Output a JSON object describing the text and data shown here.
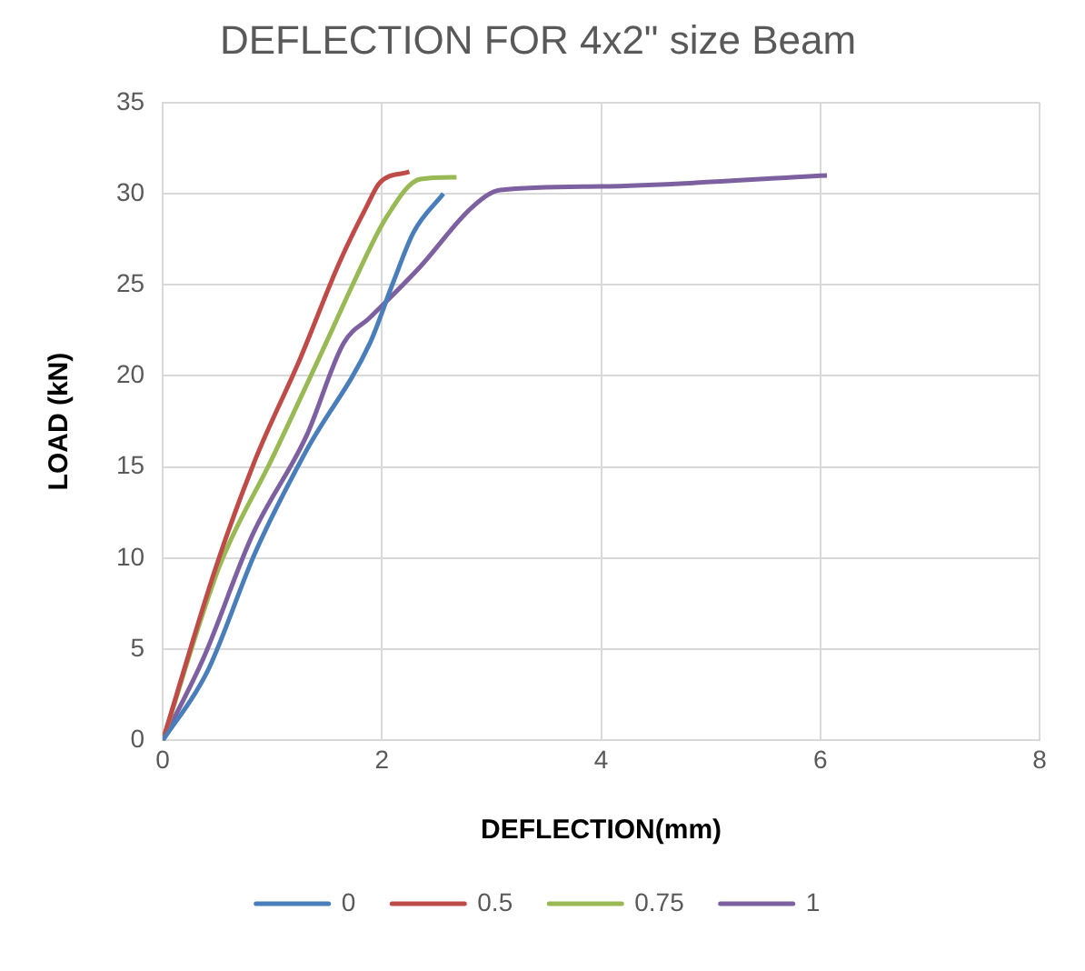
{
  "chart_data": {
    "type": "line",
    "title": "DEFLECTION FOR 4x2\" size Beam",
    "xlabel": "DEFLECTION(mm)",
    "ylabel": "LOAD (kN)",
    "xlim": [
      0,
      8
    ],
    "xticks": [
      0,
      2,
      4,
      6,
      8
    ],
    "ylim": [
      0,
      35
    ],
    "yticks": [
      0,
      5,
      10,
      15,
      20,
      25,
      30,
      35
    ],
    "grid": true,
    "legend": "bottom",
    "marker": "none",
    "line_style": "solid",
    "series": [
      {
        "name": "0",
        "color": "#4a7ebb",
        "x": [
          0,
          0.4,
          0.85,
          1.31,
          1.89,
          2.1,
          2.29,
          2.56
        ],
        "values": [
          0,
          3.7,
          10.4,
          15.9,
          21.8,
          25.1,
          27.9,
          30.0
        ]
      },
      {
        "name": "0.5",
        "color": "#be4b48",
        "x": [
          0,
          0.49,
          0.85,
          1.25,
          1.61,
          1.86,
          1.98,
          2.25
        ],
        "values": [
          0,
          9.6,
          15.5,
          20.9,
          26.2,
          29.3,
          30.6,
          31.2
        ]
      },
      {
        "name": "0.75",
        "color": "#98b954",
        "x": [
          0,
          0.52,
          1.0,
          1.55,
          1.74,
          2.04,
          2.35,
          2.68
        ],
        "values": [
          0,
          9.6,
          15.5,
          22.6,
          25.1,
          28.7,
          30.8,
          30.9
        ]
      },
      {
        "name": "1",
        "color": "#7d60a0",
        "x": [
          0,
          0.37,
          0.82,
          1.31,
          1.65,
          1.89,
          2.35,
          2.83,
          3.08,
          4.0,
          6.06
        ],
        "values": [
          0,
          4.5,
          11.3,
          16.7,
          21.8,
          23.2,
          26.0,
          29.3,
          30.2,
          30.4,
          31.0
        ]
      }
    ]
  }
}
